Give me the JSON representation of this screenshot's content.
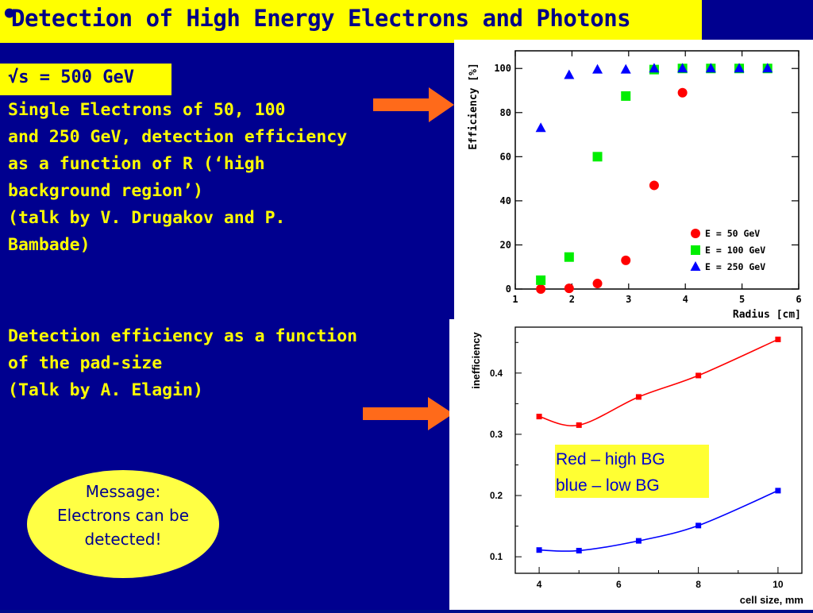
{
  "slide": {
    "bullet": "•",
    "title": "Detection of High Energy Electrons and Photons",
    "energy_label": "√s = 500 GeV",
    "paragraph1": [
      "Single Electrons of 50, 100",
      "and 250 GeV, detection efficiency",
      "as a function of R (‘high",
      "background region’)",
      "(talk by V. Drugakov and P.",
      "Bambade)"
    ],
    "paragraph2": [
      "Detection efficiency as a function",
      "of the pad-size",
      "(Talk by A. Elagin)"
    ],
    "message": [
      "Message:",
      "Electrons can be",
      "detected!"
    ]
  },
  "colors": {
    "background": "#00008f",
    "highlight": "#ffff00",
    "text_dark": "#000088",
    "arrow": "#ff6a1a",
    "red": "#ff0000",
    "green": "#00ee00",
    "blue": "#0000ff"
  },
  "chart_data": [
    {
      "type": "scatter",
      "title": "",
      "xlabel": "Radius [cm]",
      "ylabel": "Efficiency [%]",
      "xlim": [
        1,
        6
      ],
      "ylim": [
        0,
        108
      ],
      "x_ticks": [
        1,
        2,
        3,
        4,
        5,
        6
      ],
      "y_ticks": [
        0,
        20,
        40,
        60,
        80,
        100
      ],
      "legend_position": "bottom-right",
      "grid": false,
      "series": [
        {
          "name": "E = 50 GeV",
          "marker": "circle",
          "color": "#ff0000",
          "points": [
            [
              1.45,
              0
            ],
            [
              1.95,
              0.3
            ],
            [
              2.45,
              2.5
            ],
            [
              2.95,
              13
            ],
            [
              3.45,
              47
            ],
            [
              3.95,
              89
            ]
          ]
        },
        {
          "name": "E = 100 GeV",
          "marker": "square",
          "color": "#00ee00",
          "points": [
            [
              1.45,
              4
            ],
            [
              1.95,
              14.5
            ],
            [
              2.45,
              60
            ],
            [
              2.95,
              87.5
            ],
            [
              3.45,
              99.5
            ],
            [
              3.95,
              100
            ],
            [
              4.45,
              100
            ],
            [
              4.95,
              100
            ],
            [
              5.45,
              100
            ]
          ]
        },
        {
          "name": "E = 250 GeV",
          "marker": "triangle",
          "color": "#0000ff",
          "points": [
            [
              1.45,
              73
            ],
            [
              1.95,
              97
            ],
            [
              2.45,
              99.5
            ],
            [
              2.95,
              99.5
            ],
            [
              3.45,
              100
            ],
            [
              3.95,
              100
            ],
            [
              4.45,
              100
            ],
            [
              4.95,
              100
            ],
            [
              5.45,
              100
            ]
          ]
        }
      ]
    },
    {
      "type": "line",
      "title": "",
      "xlabel": "cell size, mm",
      "ylabel": "inefficiency",
      "xlim": [
        3.4,
        10.6
      ],
      "ylim": [
        0.073,
        0.475
      ],
      "x_ticks": [
        4,
        6,
        8,
        10
      ],
      "y_ticks": [
        0.1,
        0.2,
        0.3,
        0.4
      ],
      "y_tick_labels": [
        "0.1",
        "0.2",
        "0.3",
        "0.4"
      ],
      "grid": false,
      "legend_text": [
        "Red – high BG",
        "blue – low BG"
      ],
      "series": [
        {
          "color": "#ff0000",
          "x": [
            4,
            5,
            6.5,
            8,
            10
          ],
          "y": [
            0.329,
            0.315,
            0.361,
            0.396,
            0.455
          ]
        },
        {
          "color": "#0000ff",
          "x": [
            4,
            5,
            6.5,
            8,
            10
          ],
          "y": [
            0.111,
            0.11,
            0.126,
            0.151,
            0.208
          ]
        }
      ]
    }
  ]
}
